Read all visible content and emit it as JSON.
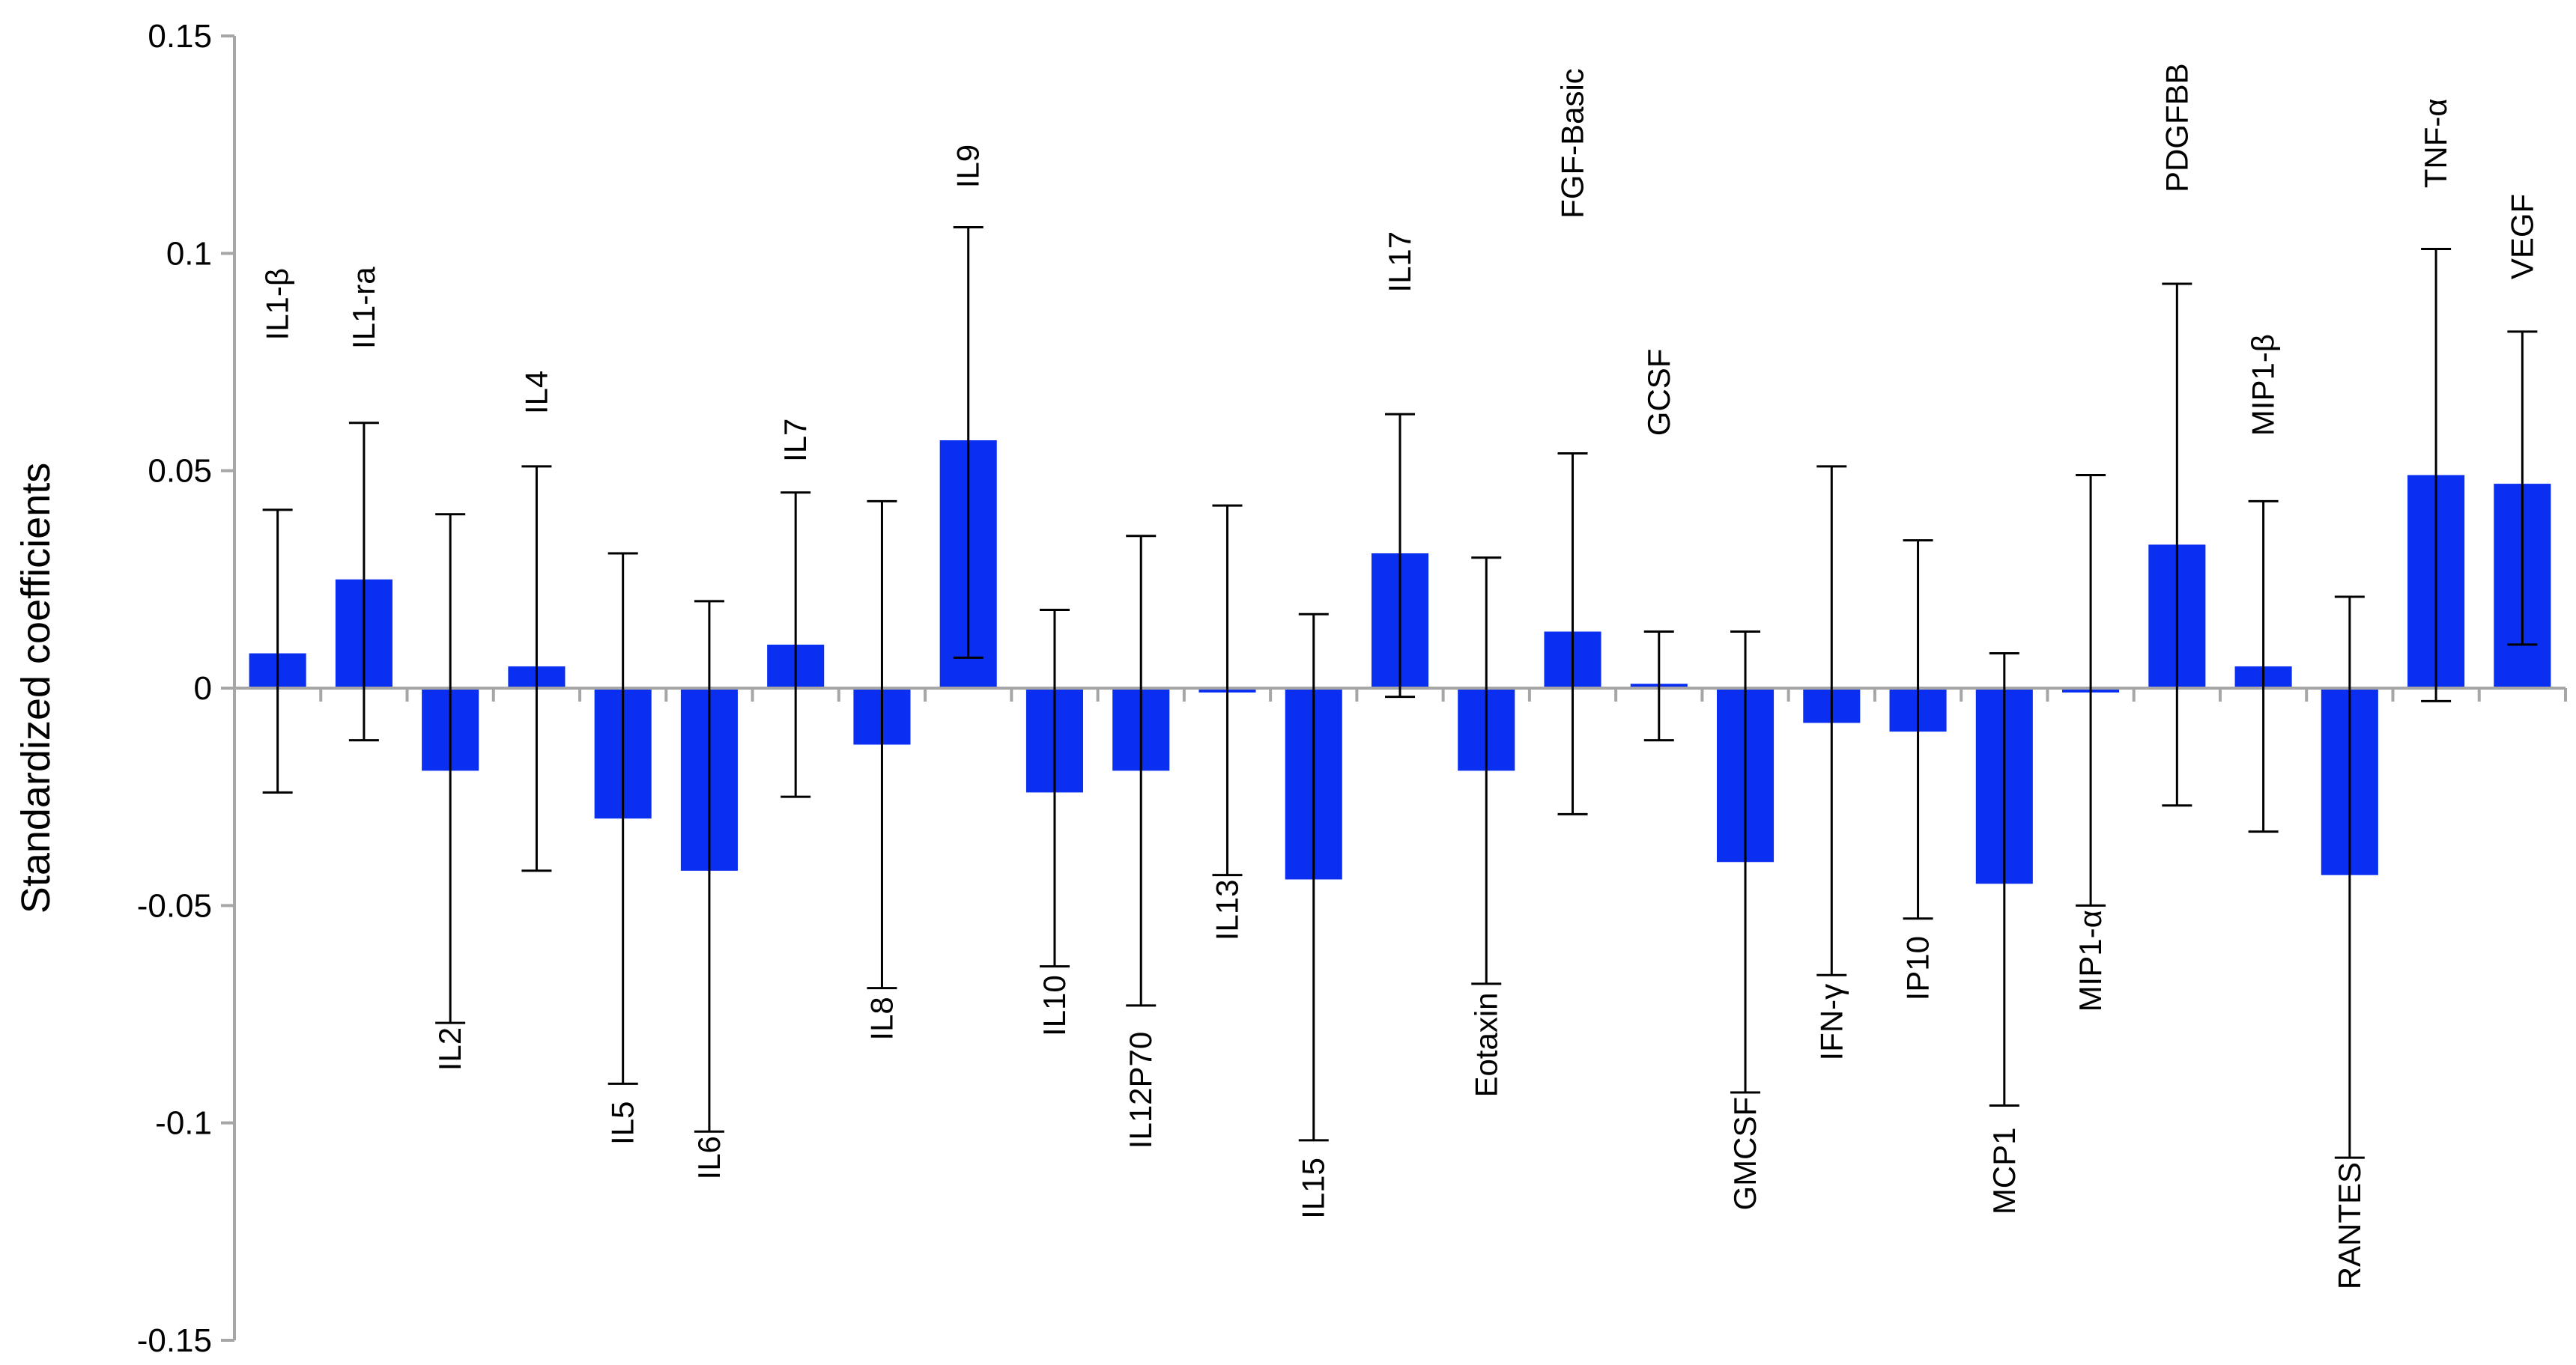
{
  "chart_data": {
    "type": "bar",
    "title": "",
    "xlabel": "",
    "ylabel": "Standardized coefficients",
    "ylim": [
      -0.15,
      0.15
    ],
    "yticks": [
      0.15,
      0.1,
      0.05,
      0,
      -0.05,
      -0.1,
      -0.15
    ],
    "ytick_labels": [
      "0.15",
      "0.1",
      "0.05",
      "0",
      "-0.05",
      "-0.1",
      "-0.15"
    ],
    "grid": false,
    "legend": "none",
    "bar_color": "#0a2ff0",
    "errorbar_color": "#000000",
    "axis_color": "#a6a6a6",
    "categories": [
      "IL1-β",
      "IL1-ra",
      "IL2",
      "IL4",
      "IL5",
      "IL6",
      "IL7",
      "IL8",
      "IL9",
      "IL10",
      "IL12P70",
      "IL13",
      "IL15",
      "IL17",
      "Eotaxin",
      "FGF-Basic",
      "GCSF",
      "GMCSF",
      "IFN-γ",
      "IP10",
      "MCP1",
      "MIP1-α",
      "PDGFBB",
      "MIP1-β",
      "RANTES",
      "TNF-α",
      "VEGF"
    ],
    "values": [
      0.008,
      0.025,
      -0.019,
      0.005,
      -0.03,
      -0.042,
      0.01,
      -0.013,
      0.057,
      -0.024,
      -0.019,
      -0.001,
      -0.044,
      0.031,
      -0.019,
      0.013,
      0.001,
      -0.04,
      -0.008,
      -0.01,
      -0.045,
      -0.001,
      0.033,
      0.005,
      -0.043,
      0.049,
      0.047
    ],
    "error_low": [
      -0.024,
      -0.012,
      -0.077,
      -0.042,
      -0.091,
      -0.102,
      -0.025,
      -0.069,
      0.007,
      -0.064,
      -0.073,
      -0.043,
      -0.104,
      -0.002,
      -0.068,
      -0.029,
      -0.012,
      -0.093,
      -0.066,
      -0.053,
      -0.096,
      -0.05,
      -0.027,
      -0.033,
      -0.108,
      -0.003,
      0.01
    ],
    "error_high": [
      0.041,
      0.061,
      0.04,
      0.051,
      0.031,
      0.02,
      0.045,
      0.043,
      0.106,
      0.018,
      0.035,
      0.042,
      0.017,
      0.063,
      0.03,
      0.054,
      0.013,
      0.013,
      0.051,
      0.034,
      0.008,
      0.049,
      0.093,
      0.043,
      0.021,
      0.101,
      0.082
    ],
    "label_positions": [
      0.08,
      0.078,
      -0.078,
      0.063,
      -0.095,
      -0.103,
      0.052,
      -0.071,
      0.115,
      -0.066,
      -0.079,
      -0.044,
      -0.108,
      0.091,
      -0.07,
      0.108,
      0.058,
      -0.094,
      -0.068,
      -0.057,
      -0.101,
      -0.051,
      0.114,
      0.058,
      -0.109,
      0.115,
      0.094
    ]
  }
}
